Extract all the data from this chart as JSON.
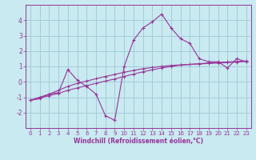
{
  "xlabel": "Windchill (Refroidissement éolien,°C)",
  "bg_color": "#c8eaf0",
  "grid_color": "#a0c8d8",
  "line_color": "#993399",
  "spine_color": "#993399",
  "x_values": [
    0,
    1,
    2,
    3,
    4,
    5,
    6,
    7,
    8,
    9,
    10,
    11,
    12,
    13,
    14,
    15,
    16,
    17,
    18,
    19,
    20,
    21,
    22,
    23
  ],
  "line1": [
    -1.2,
    -1.1,
    -0.8,
    -0.7,
    0.8,
    0.1,
    -0.3,
    -0.8,
    -2.2,
    -2.5,
    1.0,
    2.7,
    3.5,
    3.9,
    4.4,
    3.5,
    2.8,
    2.5,
    1.5,
    1.3,
    1.3,
    0.9,
    1.5,
    1.3
  ],
  "line2": [
    -1.2,
    -1.05,
    -0.9,
    -0.75,
    -0.55,
    -0.4,
    -0.25,
    -0.1,
    0.05,
    0.18,
    0.35,
    0.5,
    0.65,
    0.78,
    0.9,
    1.0,
    1.08,
    1.13,
    1.18,
    1.22,
    1.26,
    1.29,
    1.32,
    1.35
  ],
  "line3": [
    -1.2,
    -1.0,
    -0.8,
    -0.55,
    -0.3,
    -0.1,
    0.05,
    0.2,
    0.35,
    0.48,
    0.62,
    0.74,
    0.85,
    0.93,
    1.0,
    1.06,
    1.1,
    1.13,
    1.16,
    1.19,
    1.22,
    1.25,
    1.28,
    1.32
  ],
  "ylim": [
    -3.0,
    5.0
  ],
  "xlim": [
    -0.5,
    23.5
  ],
  "yticks": [
    -2,
    -1,
    0,
    1,
    2,
    3,
    4
  ],
  "xticks": [
    0,
    1,
    2,
    3,
    4,
    5,
    6,
    7,
    8,
    9,
    10,
    11,
    12,
    13,
    14,
    15,
    16,
    17,
    18,
    19,
    20,
    21,
    22,
    23
  ],
  "tick_fontsize": 5.0,
  "xlabel_fontsize": 5.5
}
